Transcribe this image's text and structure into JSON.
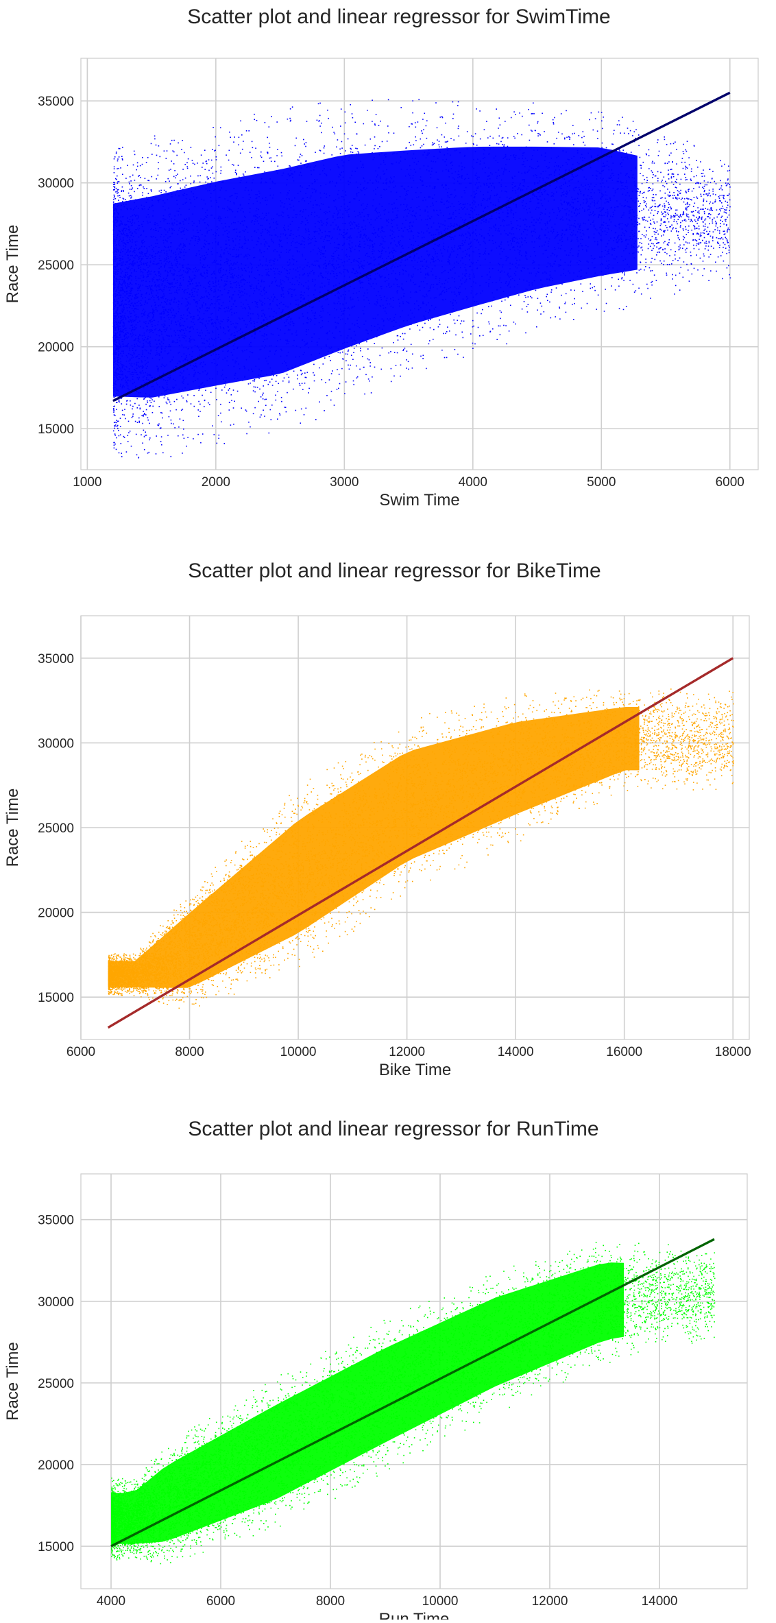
{
  "chart_data": [
    {
      "type": "scatter",
      "title": "Scatter plot and linear regressor for SwimTime",
      "xlabel": "Swim Time",
      "ylabel": "Race Time",
      "xlim": [
        950,
        6220
      ],
      "ylim": [
        12500,
        37600
      ],
      "xticks": [
        1000,
        2000,
        3000,
        4000,
        5000,
        6000
      ],
      "yticks": [
        15000,
        20000,
        25000,
        30000,
        35000
      ],
      "grid": true,
      "legend": "none",
      "point_color": "#0000ff",
      "line_color": "#00006b",
      "regression_line": {
        "x": [
          1200,
          6000
        ],
        "y": [
          16700,
          35500
        ]
      },
      "cloud": {
        "x_range": [
          1200,
          6000
        ],
        "band_low": [
          [
            1200,
            14200
          ],
          [
            1500,
            14000
          ],
          [
            2500,
            15400
          ],
          [
            3500,
            18800
          ],
          [
            4500,
            21500
          ],
          [
            6000,
            24500
          ]
        ],
        "band_high": [
          [
            1200,
            31500
          ],
          [
            2000,
            33000
          ],
          [
            3000,
            34500
          ],
          [
            4000,
            34500
          ],
          [
            5000,
            34000
          ],
          [
            6000,
            31500
          ]
        ]
      }
    },
    {
      "type": "scatter",
      "title": "Scatter plot and linear regressor for BikeTime",
      "xlabel": "Bike Time",
      "ylabel": "Race Time",
      "xlim": [
        6000,
        18300
      ],
      "ylim": [
        12500,
        37500
      ],
      "xticks": [
        6000,
        8000,
        10000,
        12000,
        14000,
        16000,
        18000
      ],
      "yticks": [
        15000,
        20000,
        25000,
        30000,
        35000
      ],
      "grid": true,
      "legend": "none",
      "point_color": "#ffa500",
      "line_color": "#a52a2a",
      "regression_line": {
        "x": [
          6500,
          18000
        ],
        "y": [
          13200,
          35000
        ]
      },
      "cloud": {
        "x_range": [
          6500,
          18000
        ],
        "band_low": [
          [
            7000,
            15200
          ],
          [
            8000,
            14500
          ],
          [
            10000,
            17200
          ],
          [
            12000,
            21500
          ],
          [
            14000,
            24500
          ],
          [
            16000,
            27500
          ]
        ],
        "band_high": [
          [
            7000,
            17500
          ],
          [
            8000,
            21000
          ],
          [
            10000,
            27000
          ],
          [
            12000,
            31000
          ],
          [
            14000,
            32500
          ],
          [
            16000,
            33000
          ]
        ]
      }
    },
    {
      "type": "scatter",
      "title": "Scatter plot and linear regressor for RunTime",
      "xlabel": "Run Time",
      "ylabel": "Race Time",
      "xlim": [
        3450,
        15600
      ],
      "ylim": [
        12400,
        37800
      ],
      "xticks": [
        4000,
        6000,
        8000,
        10000,
        12000,
        14000
      ],
      "yticks": [
        15000,
        20000,
        25000,
        30000,
        35000
      ],
      "grid": true,
      "legend": "none",
      "point_color": "#00ff00",
      "line_color": "#006400",
      "regression_line": {
        "x": [
          4000,
          15000
        ],
        "y": [
          15000,
          33800
        ]
      },
      "cloud": {
        "x_range": [
          4000,
          15000
        ],
        "band_low": [
          [
            4400,
            14400
          ],
          [
            5000,
            14200
          ],
          [
            7000,
            16500
          ],
          [
            9000,
            20000
          ],
          [
            11000,
            23500
          ],
          [
            13000,
            26500
          ],
          [
            15000,
            28000
          ]
        ],
        "band_high": [
          [
            4400,
            19000
          ],
          [
            5000,
            21000
          ],
          [
            7000,
            25000
          ],
          [
            9000,
            28500
          ],
          [
            11000,
            31500
          ],
          [
            13000,
            33500
          ],
          [
            15000,
            33000
          ]
        ]
      }
    }
  ]
}
